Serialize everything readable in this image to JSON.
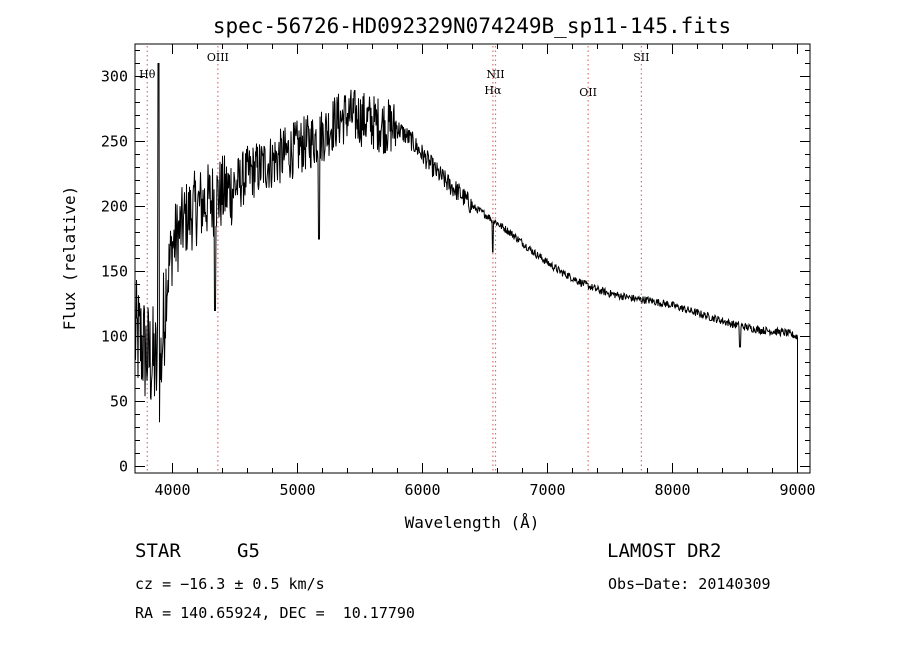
{
  "chart_data": {
    "type": "line",
    "title": "spec-56726-HD092329N074249B_sp11-145.fits",
    "xlabel": "Wavelength (Å)",
    "ylabel": "Flux (relative)",
    "xlim": [
      3700,
      9100
    ],
    "ylim": [
      -5,
      325
    ],
    "xticks": [
      4000,
      5000,
      6000,
      7000,
      8000,
      9000
    ],
    "xtick_labels": [
      "4000",
      "5000",
      "6000",
      "7000",
      "8000",
      "9000"
    ],
    "yticks": [
      0,
      50,
      100,
      150,
      200,
      250,
      300
    ],
    "ytick_labels": [
      "0",
      "50",
      "100",
      "150",
      "200",
      "250",
      "300"
    ],
    "grid": false,
    "spectrum_envelope": {
      "x": [
        3700,
        3750,
        3800,
        3850,
        3900,
        3950,
        4000,
        4100,
        4200,
        4300,
        4400,
        4500,
        4600,
        4700,
        4800,
        4900,
        5000,
        5100,
        5200,
        5300,
        5400,
        5500,
        5600,
        5700,
        5800,
        5900,
        6000,
        6100,
        6200,
        6300,
        6400,
        6500,
        6600,
        6700,
        6800,
        6900,
        7000,
        7100,
        7200,
        7300,
        7400,
        7500,
        7600,
        7700,
        7800,
        7900,
        8000,
        8100,
        8200,
        8300,
        8400,
        8500,
        8600,
        8700,
        8800,
        8900,
        9000
      ],
      "y": [
        100,
        95,
        85,
        80,
        70,
        140,
        170,
        190,
        200,
        205,
        210,
        215,
        225,
        230,
        235,
        240,
        245,
        250,
        255,
        265,
        270,
        268,
        265,
        262,
        260,
        252,
        240,
        228,
        218,
        210,
        200,
        194,
        187,
        180,
        172,
        164,
        157,
        150,
        145,
        140,
        136,
        133,
        131,
        129,
        128,
        126,
        124,
        121,
        118,
        115,
        112,
        109,
        107,
        105,
        104,
        103,
        100
      ]
    },
    "spectral_lines": [
      {
        "name": "Hθ",
        "x": 3798
      },
      {
        "name": "OIII",
        "x": 4363
      },
      {
        "name": "NII",
        "x": 6584
      },
      {
        "name": "Hα",
        "x": 6563
      },
      {
        "name": "OII",
        "x": 7325
      },
      {
        "name": "SII",
        "x": 7751
      }
    ],
    "series_color": "#000000",
    "line_marker_color": "#e07070"
  },
  "info": {
    "class": "STAR",
    "subclass": "G5",
    "survey": "LAMOST DR2",
    "cz": "cz = −16.3 ± 0.5 km/s",
    "obs_date": "Obs−Date: 20140309",
    "radec": "RA = 140.65924, DEC =  10.17790"
  }
}
